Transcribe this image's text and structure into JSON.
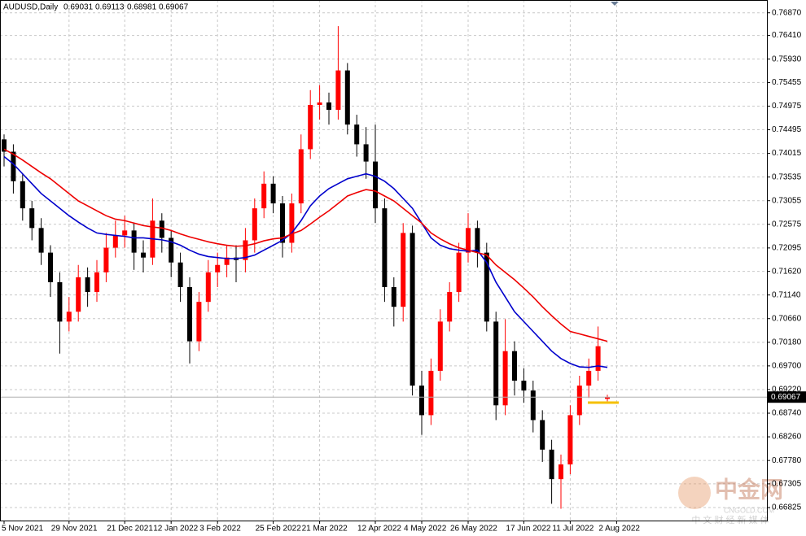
{
  "chart_data": {
    "type": "candlestick",
    "title": "AUDUSD,Daily",
    "up_color": "#ff0000",
    "down_color": "#000000",
    "grid": true,
    "ylim": [
      0.6656,
      0.7713
    ],
    "yticks": [
      {
        "value": 0.7687,
        "label": "0.76870"
      },
      {
        "value": 0.7641,
        "label": "0.76410"
      },
      {
        "value": 0.7593,
        "label": "0.75930"
      },
      {
        "value": 0.75455,
        "label": "0.75455"
      },
      {
        "value": 0.74975,
        "label": "0.74975"
      },
      {
        "value": 0.74495,
        "label": "0.74495"
      },
      {
        "value": 0.74015,
        "label": "0.74015"
      },
      {
        "value": 0.73535,
        "label": "0.73535"
      },
      {
        "value": 0.73055,
        "label": "0.73055"
      },
      {
        "value": 0.72575,
        "label": "0.72575"
      },
      {
        "value": 0.72095,
        "label": "0.72095"
      },
      {
        "value": 0.7162,
        "label": "0.71620"
      },
      {
        "value": 0.7114,
        "label": "0.71140"
      },
      {
        "value": 0.7066,
        "label": "0.70660"
      },
      {
        "value": 0.7018,
        "label": "0.70180"
      },
      {
        "value": 0.697,
        "label": "0.69700"
      },
      {
        "value": 0.6922,
        "label": "0.69220"
      },
      {
        "value": 0.6874,
        "label": "0.68740"
      },
      {
        "value": 0.6826,
        "label": "0.68260"
      },
      {
        "value": 0.6778,
        "label": "0.67780"
      },
      {
        "value": 0.67305,
        "label": "0.67305"
      },
      {
        "value": 0.66825,
        "label": "0.66825"
      }
    ],
    "x_labels": [
      {
        "value": 0,
        "label": "5 Nov 2021"
      },
      {
        "value": 7,
        "label": "29 Nov 2021"
      },
      {
        "value": 13,
        "label": "21 Dec 2021"
      },
      {
        "value": 18,
        "label": "12 Jan 2022"
      },
      {
        "value": 23,
        "label": "3 Feb 2022"
      },
      {
        "value": 29,
        "label": "25 Feb 2022"
      },
      {
        "value": 34,
        "label": "21 Mar 2022"
      },
      {
        "value": 40,
        "label": "12 Apr 2022"
      },
      {
        "value": 45,
        "label": "4 May 2022"
      },
      {
        "value": 50,
        "label": "26 May 2022"
      },
      {
        "value": 56,
        "label": "17 Jun 2022"
      },
      {
        "value": 61,
        "label": "11 Jul 2022"
      },
      {
        "value": 66,
        "label": "2 Aug 2022"
      }
    ],
    "candles": [
      [
        0.743,
        0.744,
        0.7375,
        0.7405
      ],
      [
        0.7405,
        0.742,
        0.732,
        0.7345
      ],
      [
        0.7345,
        0.736,
        0.7265,
        0.729
      ],
      [
        0.729,
        0.7305,
        0.7225,
        0.725
      ],
      [
        0.725,
        0.727,
        0.7175,
        0.72
      ],
      [
        0.72,
        0.7215,
        0.711,
        0.714
      ],
      [
        0.714,
        0.716,
        0.6995,
        0.706
      ],
      [
        0.706,
        0.711,
        0.704,
        0.708
      ],
      [
        0.708,
        0.7175,
        0.706,
        0.715
      ],
      [
        0.715,
        0.717,
        0.709,
        0.712
      ],
      [
        0.712,
        0.7185,
        0.71,
        0.716
      ],
      [
        0.716,
        0.724,
        0.714,
        0.721
      ],
      [
        0.721,
        0.7265,
        0.719,
        0.7235
      ],
      [
        0.7235,
        0.7275,
        0.721,
        0.7245
      ],
      [
        0.7245,
        0.726,
        0.7165,
        0.72
      ],
      [
        0.72,
        0.7225,
        0.716,
        0.719
      ],
      [
        0.719,
        0.731,
        0.7175,
        0.7265
      ],
      [
        0.7265,
        0.728,
        0.72,
        0.723
      ],
      [
        0.723,
        0.7245,
        0.715,
        0.718
      ],
      [
        0.718,
        0.72,
        0.71,
        0.713
      ],
      [
        0.713,
        0.715,
        0.6975,
        0.702
      ],
      [
        0.702,
        0.712,
        0.7,
        0.71
      ],
      [
        0.71,
        0.7185,
        0.708,
        0.716
      ],
      [
        0.716,
        0.72,
        0.713,
        0.7175
      ],
      [
        0.7175,
        0.7215,
        0.715,
        0.719
      ],
      [
        0.719,
        0.7215,
        0.714,
        0.7185
      ],
      [
        0.7185,
        0.725,
        0.716,
        0.7225
      ],
      [
        0.7225,
        0.731,
        0.72,
        0.729
      ],
      [
        0.729,
        0.7365,
        0.727,
        0.734
      ],
      [
        0.734,
        0.7355,
        0.728,
        0.73
      ],
      [
        0.73,
        0.7315,
        0.719,
        0.722
      ],
      [
        0.722,
        0.732,
        0.72,
        0.73
      ],
      [
        0.73,
        0.744,
        0.728,
        0.741
      ],
      [
        0.741,
        0.753,
        0.739,
        0.75
      ],
      [
        0.75,
        0.754,
        0.747,
        0.7505
      ],
      [
        0.7505,
        0.7525,
        0.746,
        0.749
      ],
      [
        0.749,
        0.766,
        0.747,
        0.757
      ],
      [
        0.757,
        0.7585,
        0.744,
        0.746
      ],
      [
        0.746,
        0.748,
        0.7395,
        0.742
      ],
      [
        0.742,
        0.7455,
        0.735,
        0.7385
      ],
      [
        0.7385,
        0.746,
        0.726,
        0.729
      ],
      [
        0.729,
        0.731,
        0.71,
        0.713
      ],
      [
        0.713,
        0.715,
        0.705,
        0.709
      ],
      [
        0.709,
        0.726,
        0.706,
        0.724
      ],
      [
        0.724,
        0.7255,
        0.691,
        0.693
      ],
      [
        0.693,
        0.696,
        0.683,
        0.687
      ],
      [
        0.687,
        0.6985,
        0.685,
        0.696
      ],
      [
        0.696,
        0.7085,
        0.694,
        0.706
      ],
      [
        0.706,
        0.714,
        0.704,
        0.712
      ],
      [
        0.712,
        0.722,
        0.71,
        0.72
      ],
      [
        0.72,
        0.728,
        0.718,
        0.725
      ],
      [
        0.725,
        0.7265,
        0.717,
        0.72
      ],
      [
        0.72,
        0.722,
        0.704,
        0.706
      ],
      [
        0.706,
        0.708,
        0.686,
        0.689
      ],
      [
        0.689,
        0.7065,
        0.687,
        0.7
      ],
      [
        0.7,
        0.702,
        0.691,
        0.694
      ],
      [
        0.694,
        0.6965,
        0.6895,
        0.692
      ],
      [
        0.692,
        0.694,
        0.6835,
        0.686
      ],
      [
        0.686,
        0.688,
        0.6775,
        0.68
      ],
      [
        0.68,
        0.682,
        0.669,
        0.674
      ],
      [
        0.674,
        0.679,
        0.668,
        0.677
      ],
      [
        0.677,
        0.689,
        0.675,
        0.687
      ],
      [
        0.687,
        0.695,
        0.685,
        0.693
      ],
      [
        0.693,
        0.6985,
        0.6905,
        0.696
      ],
      [
        0.696,
        0.705,
        0.694,
        0.701
      ],
      [
        0.69031,
        0.69113,
        0.68981,
        0.69067
      ]
    ],
    "moving_averages": [
      {
        "color": "#0000cc",
        "values": [
          0.7395,
          0.738,
          0.736,
          0.734,
          0.732,
          0.7305,
          0.729,
          0.7275,
          0.7262,
          0.725,
          0.724,
          0.7237,
          0.7235,
          0.7233,
          0.723,
          0.723,
          0.7228,
          0.7226,
          0.7222,
          0.7215,
          0.7205,
          0.7197,
          0.7192,
          0.719,
          0.7188,
          0.7188,
          0.719,
          0.7195,
          0.7205,
          0.7215,
          0.7225,
          0.724,
          0.7265,
          0.7295,
          0.7315,
          0.733,
          0.734,
          0.735,
          0.7355,
          0.736,
          0.7355,
          0.7345,
          0.733,
          0.731,
          0.729,
          0.726,
          0.723,
          0.7215,
          0.7208,
          0.7205,
          0.7203,
          0.7205,
          0.718,
          0.714,
          0.711,
          0.708,
          0.706,
          0.704,
          0.702,
          0.7,
          0.6985,
          0.6975,
          0.6968,
          0.6967,
          0.697,
          0.6967
        ]
      },
      {
        "color": "#ee0000",
        "values": [
          0.741,
          0.74,
          0.7388,
          0.7375,
          0.7362,
          0.735,
          0.7335,
          0.732,
          0.7305,
          0.7295,
          0.7285,
          0.7275,
          0.7268,
          0.7265,
          0.726,
          0.7255,
          0.7252,
          0.725,
          0.7245,
          0.7238,
          0.7232,
          0.7227,
          0.7222,
          0.7218,
          0.7215,
          0.7213,
          0.7214,
          0.7218,
          0.7224,
          0.7228,
          0.723,
          0.7238,
          0.7245,
          0.7258,
          0.7272,
          0.7285,
          0.73,
          0.7315,
          0.7322,
          0.7328,
          0.7325,
          0.7315,
          0.7305,
          0.729,
          0.7275,
          0.726,
          0.724,
          0.7228,
          0.7218,
          0.721,
          0.7205,
          0.72,
          0.7195,
          0.7175,
          0.716,
          0.7145,
          0.7128,
          0.711,
          0.709,
          0.7072,
          0.7055,
          0.704,
          0.7035,
          0.703,
          0.7025,
          0.702
        ]
      }
    ],
    "watermark": {
      "title": "中金网",
      "domain": "CNGOLD.COM",
      "tagline": "中 文 财 经 新 媒 体"
    }
  }
}
